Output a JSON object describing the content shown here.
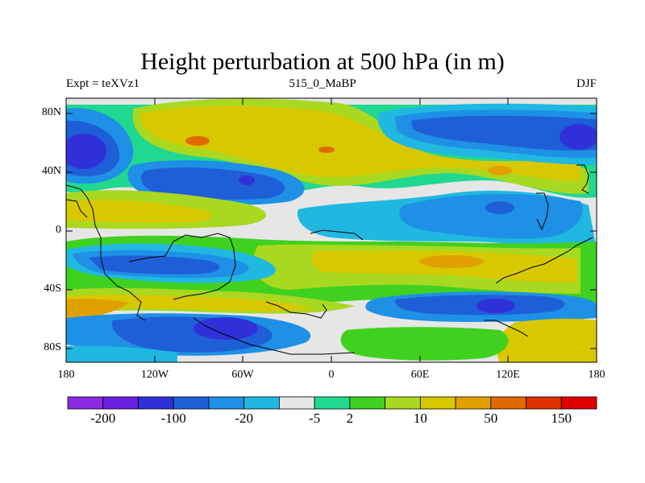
{
  "title": "Height perturbation at 500 hPa (in m)",
  "left_string": "Expt = teXVz1",
  "center_string": "515_0_MaBP",
  "right_string": "DJF",
  "lat_ticks": [
    "80N",
    "40N",
    "0",
    "40S",
    "80S"
  ],
  "lon_ticks": [
    "180",
    "120W",
    "60W",
    "0",
    "60E",
    "120E",
    "180"
  ],
  "colorbar": {
    "colors": [
      "#8a2be2",
      "#6a1fe0",
      "#3030d8",
      "#1e5fd8",
      "#1e90e6",
      "#20b8e0",
      "#e6e6e6",
      "#20d890",
      "#40d020",
      "#a8d820",
      "#d8c800",
      "#e0a000",
      "#e06a00",
      "#e03000",
      "#e00000"
    ],
    "tick_labels": [
      "-200",
      "-100",
      "-20",
      "-5",
      "2",
      "10",
      "50",
      "150"
    ]
  }
}
